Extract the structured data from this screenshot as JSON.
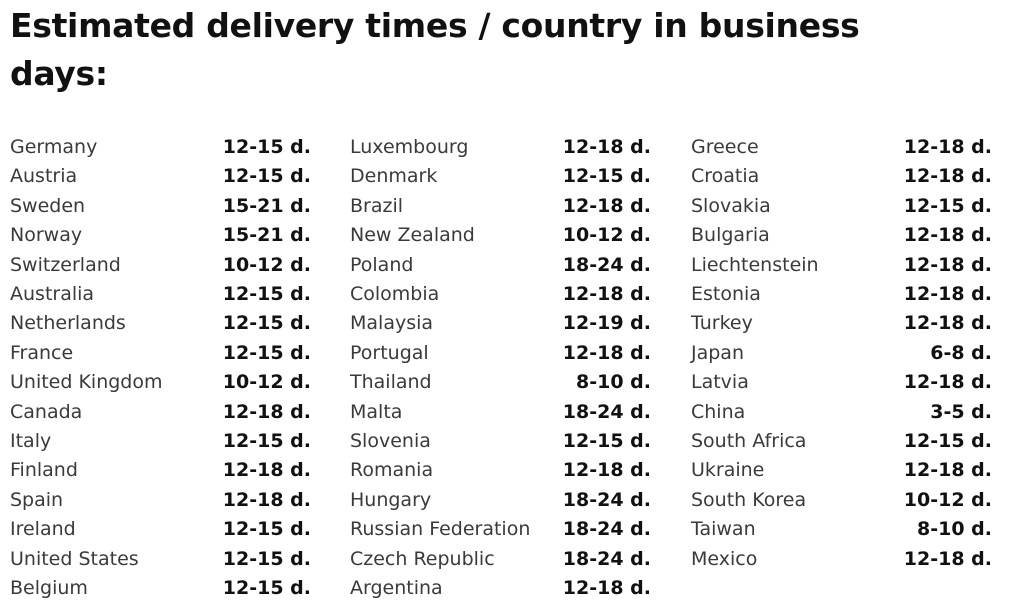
{
  "header": {
    "title": "Estimated delivery times / country in business days:"
  },
  "table": {
    "columns": [
      {
        "rows": [
          {
            "country": "Germany",
            "time": "12-15 d."
          },
          {
            "country": "Austria",
            "time": "12-15 d."
          },
          {
            "country": "Sweden",
            "time": "15-21 d."
          },
          {
            "country": "Norway",
            "time": "15-21 d."
          },
          {
            "country": "Switzerland",
            "time": "10-12 d."
          },
          {
            "country": "Australia",
            "time": "12-15 d."
          },
          {
            "country": "Netherlands",
            "time": "12-15 d."
          },
          {
            "country": "France",
            "time": "12-15 d."
          },
          {
            "country": "United Kingdom",
            "time": "10-12 d."
          },
          {
            "country": "Canada",
            "time": "12-18 d."
          },
          {
            "country": "Italy",
            "time": "12-15 d."
          },
          {
            "country": "Finland",
            "time": "12-18 d."
          },
          {
            "country": "Spain",
            "time": "12-18 d."
          },
          {
            "country": "Ireland",
            "time": "12-15 d."
          },
          {
            "country": "United States",
            "time": "12-15 d."
          },
          {
            "country": "Belgium",
            "time": "12-15 d."
          }
        ]
      },
      {
        "rows": [
          {
            "country": "Luxembourg",
            "time": "12-18 d."
          },
          {
            "country": "Denmark",
            "time": "12-15 d."
          },
          {
            "country": "Brazil",
            "time": "12-18 d."
          },
          {
            "country": "New Zealand",
            "time": "10-12 d."
          },
          {
            "country": "Poland",
            "time": "18-24 d."
          },
          {
            "country": "Colombia",
            "time": "12-18 d."
          },
          {
            "country": "Malaysia",
            "time": "12-19 d."
          },
          {
            "country": "Portugal",
            "time": "12-18 d."
          },
          {
            "country": "Thailand",
            "time": "8-10 d."
          },
          {
            "country": "Malta",
            "time": "18-24 d."
          },
          {
            "country": "Slovenia",
            "time": "12-15 d."
          },
          {
            "country": "Romania",
            "time": "12-18 d."
          },
          {
            "country": "Hungary",
            "time": "18-24 d."
          },
          {
            "country": "Russian Federation",
            "time": "18-24 d."
          },
          {
            "country": "Czech Republic",
            "time": "18-24 d."
          },
          {
            "country": "Argentina",
            "time": "12-18 d."
          }
        ]
      },
      {
        "rows": [
          {
            "country": "Greece",
            "time": "12-18 d."
          },
          {
            "country": "Croatia",
            "time": "12-18 d."
          },
          {
            "country": "Slovakia",
            "time": "12-15 d."
          },
          {
            "country": "Bulgaria",
            "time": "12-18 d."
          },
          {
            "country": "Liechtenstein",
            "time": "12-18 d."
          },
          {
            "country": "Estonia",
            "time": "12-18 d."
          },
          {
            "country": "Turkey",
            "time": "12-18 d."
          },
          {
            "country": "Japan",
            "time": "6-8 d."
          },
          {
            "country": "Latvia",
            "time": "12-18 d."
          },
          {
            "country": "China",
            "time": "3-5 d."
          },
          {
            "country": "South Africa",
            "time": "12-15 d."
          },
          {
            "country": "Ukraine",
            "time": "12-18 d."
          },
          {
            "country": "South Korea",
            "time": "10-12 d."
          },
          {
            "country": "Taiwan",
            "time": "8-10 d."
          },
          {
            "country": "Mexico",
            "time": "12-18 d."
          }
        ]
      }
    ]
  }
}
